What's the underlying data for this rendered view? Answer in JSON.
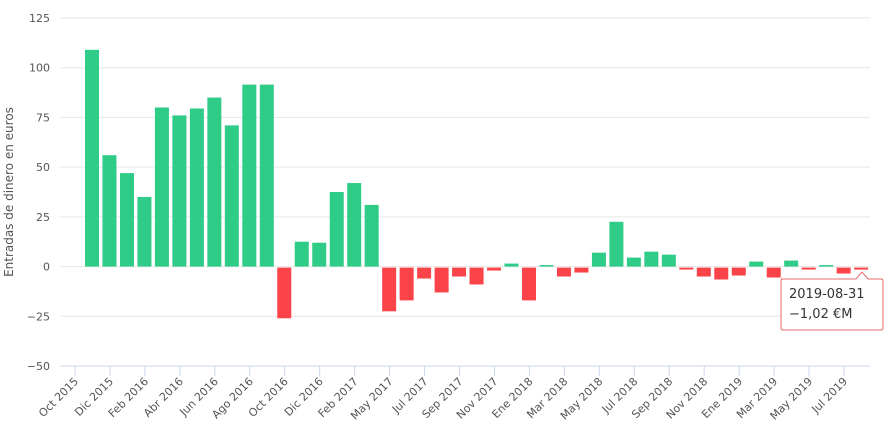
{
  "chart_data": {
    "type": "bar",
    "title": "",
    "xlabel": "",
    "ylabel": "Entradas de dinero en euros",
    "ylim": [
      -50,
      125
    ],
    "yticks": [
      "125",
      "100",
      "75",
      "50",
      "25",
      "0",
      "−25",
      "−50"
    ],
    "ytick_values": [
      125,
      100,
      75,
      50,
      25,
      0,
      -25,
      -50
    ],
    "xtick_labels": [
      "Oct 2015",
      "Dic 2015",
      "Feb 2016",
      "Abr 2016",
      "Jun 2016",
      "Ago 2016",
      "Oct 2016",
      "Dic 2016",
      "Feb 2017",
      "May 2017",
      "Jul 2017",
      "Sep 2017",
      "Nov 2017",
      "Ene 2018",
      "Mar 2018",
      "May 2018",
      "Jul 2018",
      "Sep 2018",
      "Nov 2018",
      "Ene 2019",
      "Mar 2019",
      "May 2019",
      "Jul 2019"
    ],
    "categories": [
      "2015-12",
      "2016-01",
      "2016-02",
      "2016-03",
      "2016-04",
      "2016-05",
      "2016-06",
      "2016-07",
      "2016-08",
      "2016-09",
      "2016-10",
      "2016-11",
      "2016-12",
      "2017-01",
      "2017-02",
      "2017-03",
      "2017-04",
      "2017-05",
      "2017-06",
      "2017-07",
      "2017-08",
      "2017-09",
      "2017-10",
      "2017-11",
      "2017-12",
      "2018-01",
      "2018-02",
      "2018-03",
      "2018-04",
      "2018-05",
      "2018-06",
      "2018-07",
      "2018-08",
      "2018-09",
      "2018-10",
      "2018-11",
      "2018-12",
      "2019-01",
      "2019-02",
      "2019-03",
      "2019-04",
      "2019-05",
      "2019-06",
      "2019-07",
      "2019-08"
    ],
    "values": [
      109,
      56,
      47,
      35,
      80,
      76,
      79.5,
      85,
      71,
      91.5,
      91.5,
      -25.5,
      12.5,
      12,
      37.5,
      42,
      31,
      -22,
      -16.5,
      -5.5,
      -12.5,
      -4.5,
      -8.5,
      -1.5,
      1.5,
      -16.5,
      0.7,
      -4.5,
      -2.5,
      7,
      22.5,
      4.5,
      7.5,
      6,
      -1,
      -4.5,
      -6,
      -4,
      2.5,
      -5,
      3,
      -1,
      0,
      -3,
      -1.02
    ],
    "colors": {
      "positive": "#2ecc87",
      "negative": "#fb4449",
      "grid": "#e6e6e6"
    },
    "grid": true,
    "legend": "none",
    "tooltip": {
      "date": "2019-08-31",
      "value": "−1,02 €M"
    }
  }
}
